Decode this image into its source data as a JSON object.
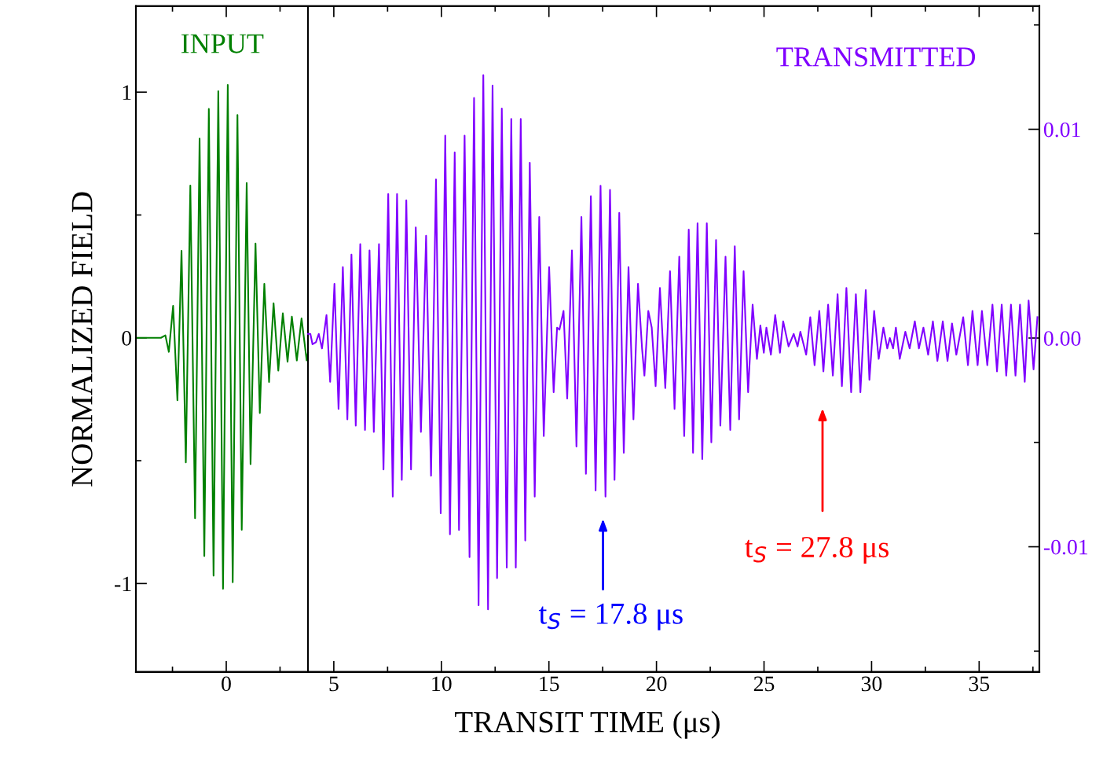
{
  "chart_data": {
    "type": "line",
    "xlabel": "TRANSIT TIME (μs)",
    "ylabel": "NORMALIZED FIELD",
    "xlim": [
      -4.2,
      37.8
    ],
    "xticks": [
      0,
      5,
      10,
      15,
      20,
      25,
      30,
      35
    ],
    "ylim": [
      -1.36,
      1.35
    ],
    "yticks": [
      {
        "value": -1,
        "label": "-1"
      },
      0,
      1
    ],
    "y2lim": [
      -0.016,
      0.0159
    ],
    "y2ticks": [
      {
        "value": -0.01,
        "label": "-0.01"
      },
      {
        "value": 0,
        "label": "0.00"
      },
      {
        "value": 0.01,
        "label": "0.01"
      }
    ],
    "grid": false,
    "legend": false,
    "marker": "none",
    "line_style": "solid",
    "series": [
      {
        "name": "INPUT",
        "color": "#008000",
        "x": [
          -4.18,
          -3.04,
          -2.83,
          -2.67,
          -2.47,
          -2.27,
          -2.08,
          -1.88,
          -1.67,
          -1.45,
          -1.24,
          -1.02,
          -0.81,
          -0.59,
          -0.37,
          -0.15,
          0.07,
          0.3,
          0.52,
          0.72,
          0.95,
          1.13,
          1.36,
          1.56,
          1.77,
          1.99,
          2.2,
          2.42,
          2.63,
          2.85,
          3.05,
          3.28,
          3.5,
          3.74,
          3.8
        ],
        "values": [
          0,
          0,
          0.01,
          -0.057,
          0.13,
          -0.254,
          0.354,
          -0.507,
          0.62,
          -0.734,
          0.811,
          -0.888,
          0.932,
          -0.968,
          1.004,
          -1.021,
          1.029,
          -0.995,
          0.907,
          -0.781,
          0.63,
          -0.514,
          0.384,
          -0.306,
          0.22,
          -0.18,
          0.141,
          -0.133,
          0.1,
          -0.097,
          0.086,
          -0.092,
          0.079,
          -0.092,
          -0.06
        ]
      },
      {
        "name": "TRANSMITTED",
        "color": "#8000ff",
        "axis": "y2",
        "x": [
          3.8,
          3.91,
          4.01,
          4.17,
          4.3,
          4.45,
          4.66,
          4.83,
          5.03,
          5.22,
          5.42,
          5.63,
          5.82,
          6.02,
          6.23,
          6.45,
          6.66,
          6.86,
          7.1,
          7.31,
          7.53,
          7.74,
          7.94,
          8.16,
          8.37,
          8.59,
          8.81,
          9.05,
          9.29,
          9.52,
          9.75,
          9.97,
          10.18,
          10.4,
          10.62,
          10.82,
          11.08,
          11.31,
          11.52,
          11.73,
          11.95,
          12.17,
          12.38,
          12.59,
          12.81,
          13.04,
          13.25,
          13.46,
          13.69,
          13.9,
          14.11,
          14.34,
          14.55,
          14.76,
          15.01,
          15.22,
          15.38,
          15.49,
          15.68,
          15.85,
          16.07,
          16.28,
          16.51,
          16.72,
          16.95,
          17.17,
          17.4,
          17.63,
          17.84,
          18.05,
          18.27,
          18.48,
          18.7,
          18.93,
          19.14,
          19.33,
          19.44,
          19.62,
          19.78,
          19.96,
          20.16,
          20.41,
          20.63,
          20.84,
          21.06,
          21.29,
          21.5,
          21.7,
          21.91,
          22.13,
          22.34,
          22.55,
          22.77,
          22.97,
          23.21,
          23.43,
          23.64,
          23.84,
          24.05,
          24.26,
          24.47,
          24.67,
          24.83,
          24.99,
          25.11,
          25.32,
          25.52,
          25.74,
          25.89,
          26.14,
          26.38,
          26.56,
          26.69,
          26.96,
          27.15,
          27.35,
          27.57,
          27.76,
          27.98,
          28.2,
          28.42,
          28.62,
          28.83,
          29.05,
          29.27,
          29.48,
          29.73,
          29.9,
          30.12,
          30.33,
          30.55,
          30.73,
          30.85,
          31.0,
          31.13,
          31.31,
          31.57,
          31.77,
          32.01,
          32.2,
          32.41,
          32.63,
          32.85,
          33.06,
          33.31,
          33.53,
          33.74,
          33.94,
          34.26,
          34.48,
          34.69,
          34.93,
          35.13,
          35.38,
          35.62,
          35.83,
          36.05,
          36.26,
          36.48,
          36.69,
          36.9,
          37.12,
          37.3,
          37.53,
          37.71
        ],
        "values": [
          0.0002,
          0.0002,
          -0.0003,
          -0.0002,
          0.0002,
          -0.0005,
          0.0011,
          -0.0021,
          0.0026,
          -0.0034,
          0.0034,
          -0.0039,
          0.004,
          -0.0042,
          0.0045,
          -0.0044,
          0.0042,
          -0.0045,
          0.0045,
          -0.0063,
          0.0069,
          -0.0076,
          0.0069,
          -0.0068,
          0.0066,
          -0.0063,
          0.0053,
          -0.0045,
          0.0049,
          -0.0066,
          0.0076,
          -0.0084,
          0.0097,
          -0.0094,
          0.0089,
          -0.0092,
          0.0097,
          -0.0105,
          0.0115,
          -0.0128,
          0.0126,
          -0.013,
          0.0121,
          -0.0115,
          0.011,
          -0.011,
          0.0105,
          -0.011,
          0.0105,
          -0.0097,
          0.0084,
          -0.0076,
          0.0058,
          -0.0047,
          0.0034,
          -0.0026,
          0.0005,
          0.0004,
          0.0013,
          -0.0029,
          0.0042,
          -0.0052,
          0.0058,
          -0.0065,
          0.0068,
          -0.0073,
          0.0073,
          -0.0076,
          0.0071,
          -0.0068,
          0.006,
          -0.0055,
          0.0034,
          -0.0039,
          0.0026,
          -0.0005,
          -0.0018,
          0.0013,
          0.0005,
          -0.0023,
          0.0024,
          -0.0024,
          0.0032,
          -0.0034,
          0.0039,
          -0.0047,
          0.0052,
          -0.0055,
          0.0055,
          -0.0058,
          0.0055,
          -0.005,
          0.0047,
          -0.0042,
          0.0039,
          -0.0044,
          0.0044,
          -0.0039,
          0.0032,
          -0.0026,
          0.0016,
          -0.001,
          0.0006,
          -0.0007,
          0.0005,
          -0.0008,
          0.0011,
          -0.0007,
          0.0008,
          -0.0004,
          0.0002,
          -0.0004,
          0.0003,
          -0.0008,
          0.001,
          -0.0013,
          0.0013,
          -0.0016,
          0.0016,
          -0.0018,
          0.0021,
          -0.0023,
          0.0024,
          -0.0026,
          0.0021,
          -0.0026,
          0.0023,
          -0.002,
          0.0013,
          -0.001,
          0.0005,
          -0.0005,
          0,
          -0.0005,
          0.0005,
          -0.001,
          0.0003,
          -0.0005,
          0.0008,
          -0.0005,
          0.0005,
          -0.0008,
          0.0008,
          -0.0011,
          0.0008,
          -0.0011,
          0.0007,
          -0.0008,
          0.001,
          -0.0013,
          0.0013,
          -0.0013,
          0.0013,
          -0.0013,
          0.0016,
          -0.0016,
          0.0016,
          -0.0018,
          0.0016,
          -0.0018,
          0.0016,
          -0.0021,
          0.0018,
          -0.0015,
          0.001
        ]
      }
    ],
    "ref_lines": [
      {
        "axis": "x",
        "value": 3.8,
        "color": "#000000",
        "line_style": "solid"
      }
    ],
    "annotations": [
      "t$_{S}$ = 17.8 μs",
      "t$_{S}$ = 27.8 μs"
    ]
  }
}
